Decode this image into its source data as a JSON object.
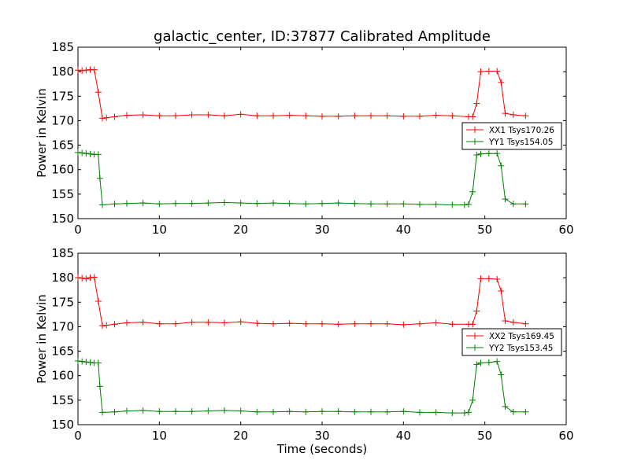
{
  "chart_data": {
    "type": "line",
    "title": "galactic_center, ID:37877 Calibrated Amplitude",
    "xlabel": "Time (seconds)",
    "panels": [
      {
        "ylabel": "Power in Kelvin",
        "xlim": [
          0,
          60
        ],
        "ylim": [
          150,
          185
        ],
        "xticks": [
          0,
          10,
          20,
          30,
          40,
          50,
          60
        ],
        "yticks": [
          150,
          155,
          160,
          165,
          170,
          175,
          180,
          185
        ],
        "legend_position": "center-right",
        "series": [
          {
            "name": "XX1 Tsys170.26",
            "color": "#ff0000",
            "x": [
              0.0,
              0.5,
              1.0,
              1.5,
              2.0,
              2.5,
              3.0,
              3.5,
              4.5,
              6,
              8,
              10,
              12,
              14,
              16,
              18,
              20,
              22,
              24,
              26,
              28,
              30,
              32,
              34,
              36,
              38,
              40,
              42,
              44,
              46,
              48,
              48.5,
              49.0,
              49.5,
              50.5,
              51.5,
              52.0,
              52.5,
              53.5,
              55.0
            ],
            "y": [
              180.3,
              180.2,
              180.3,
              180.4,
              180.4,
              175.8,
              170.5,
              170.6,
              170.8,
              171.1,
              171.2,
              171.0,
              171.0,
              171.2,
              171.2,
              171.0,
              171.3,
              171.0,
              171.0,
              171.1,
              171.0,
              170.9,
              170.9,
              171.0,
              171.0,
              171.0,
              170.9,
              170.9,
              171.1,
              171.0,
              170.8,
              170.8,
              173.5,
              180.0,
              180.1,
              180.1,
              177.8,
              171.5,
              171.2,
              171.0
            ]
          },
          {
            "name": "YY1 Tsys154.05",
            "color": "#008000",
            "x": [
              0.0,
              0.5,
              1.0,
              1.5,
              2.0,
              2.5,
              2.7,
              3.0,
              4.5,
              6,
              8,
              10,
              12,
              14,
              16,
              18,
              20,
              22,
              24,
              26,
              28,
              30,
              32,
              34,
              36,
              38,
              40,
              42,
              44,
              46,
              47.5,
              48.0,
              48.5,
              49.0,
              49.5,
              50.5,
              51.5,
              52.0,
              52.5,
              53.5,
              55.0
            ],
            "y": [
              163.5,
              163.4,
              163.3,
              163.2,
              163.1,
              163.1,
              158.2,
              152.8,
              153.0,
              153.1,
              153.2,
              153.0,
              153.1,
              153.1,
              153.2,
              153.3,
              153.2,
              153.1,
              153.2,
              153.1,
              153.0,
              153.1,
              153.2,
              153.1,
              153.0,
              153.0,
              153.0,
              152.9,
              152.9,
              152.8,
              152.8,
              152.9,
              155.5,
              163.0,
              163.2,
              163.3,
              163.3,
              160.8,
              154.0,
              153.0,
              153.0
            ]
          }
        ]
      },
      {
        "ylabel": "Power in Kelvin",
        "xlim": [
          0,
          60
        ],
        "ylim": [
          150,
          185
        ],
        "xticks": [
          0,
          10,
          20,
          30,
          40,
          50,
          60
        ],
        "yticks": [
          150,
          155,
          160,
          165,
          170,
          175,
          180,
          185
        ],
        "legend_position": "center-right",
        "series": [
          {
            "name": "XX2 Tsys169.45",
            "color": "#ff0000",
            "x": [
              0.0,
              0.5,
              1.0,
              1.5,
              2.0,
              2.5,
              3.0,
              3.5,
              4.5,
              6,
              8,
              10,
              12,
              14,
              16,
              18,
              20,
              22,
              24,
              26,
              28,
              30,
              32,
              34,
              36,
              38,
              40,
              42,
              44,
              46,
              48,
              48.5,
              49.0,
              49.5,
              50.5,
              51.5,
              52.0,
              52.5,
              53.5,
              55.0
            ],
            "y": [
              180.0,
              179.9,
              179.8,
              180.0,
              180.1,
              175.2,
              170.2,
              170.3,
              170.5,
              170.8,
              170.9,
              170.6,
              170.6,
              170.9,
              170.9,
              170.8,
              171.0,
              170.7,
              170.6,
              170.7,
              170.6,
              170.6,
              170.5,
              170.6,
              170.6,
              170.6,
              170.4,
              170.6,
              170.8,
              170.5,
              170.5,
              170.5,
              173.2,
              179.8,
              179.8,
              179.7,
              177.3,
              171.2,
              170.9,
              170.6
            ]
          },
          {
            "name": "YY2 Tsys153.45",
            "color": "#008000",
            "x": [
              0.0,
              0.5,
              1.0,
              1.5,
              2.0,
              2.5,
              2.7,
              3.0,
              4.5,
              6,
              8,
              10,
              12,
              14,
              16,
              18,
              20,
              22,
              24,
              26,
              28,
              30,
              32,
              34,
              36,
              38,
              40,
              42,
              44,
              46,
              47.5,
              48.0,
              48.5,
              49.0,
              49.5,
              50.5,
              51.5,
              52.0,
              52.5,
              53.5,
              55.0
            ],
            "y": [
              163.0,
              162.9,
              162.8,
              162.7,
              162.6,
              162.6,
              157.8,
              152.5,
              152.6,
              152.8,
              152.9,
              152.7,
              152.7,
              152.7,
              152.8,
              152.9,
              152.8,
              152.6,
              152.6,
              152.7,
              152.6,
              152.7,
              152.7,
              152.6,
              152.6,
              152.6,
              152.7,
              152.5,
              152.5,
              152.4,
              152.4,
              152.5,
              155.0,
              162.3,
              162.6,
              162.7,
              162.9,
              160.2,
              153.7,
              152.6,
              152.6
            ]
          }
        ]
      }
    ]
  }
}
